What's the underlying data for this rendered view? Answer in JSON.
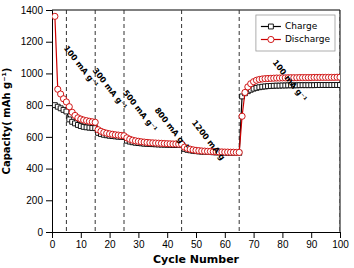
{
  "chart_data": {
    "type": "line",
    "xlabel": "Cycle Number",
    "ylabel": "Capacity( mAh g⁻¹)",
    "xlim": [
      0,
      100
    ],
    "ylim": [
      0,
      1400
    ],
    "xticks": [
      0,
      10,
      20,
      30,
      40,
      50,
      60,
      70,
      80,
      90,
      100
    ],
    "yticks": [
      0,
      200,
      400,
      600,
      800,
      1000,
      1200,
      1400
    ],
    "grid": false,
    "legend": "upper right",
    "x": [
      1,
      2,
      3,
      4,
      5,
      6,
      7,
      8,
      9,
      10,
      11,
      12,
      13,
      14,
      15,
      16,
      17,
      18,
      19,
      20,
      21,
      22,
      23,
      24,
      25,
      26,
      27,
      28,
      29,
      30,
      31,
      32,
      33,
      34,
      35,
      36,
      37,
      38,
      39,
      40,
      41,
      42,
      43,
      44,
      45,
      46,
      47,
      48,
      49,
      50,
      51,
      52,
      53,
      54,
      55,
      56,
      57,
      58,
      59,
      60,
      61,
      62,
      63,
      64,
      65,
      66,
      67,
      68,
      69,
      70,
      71,
      72,
      73,
      74,
      75,
      76,
      77,
      78,
      79,
      80,
      81,
      82,
      83,
      84,
      85,
      86,
      87,
      88,
      89,
      90,
      91,
      92,
      93,
      94,
      95,
      96,
      97,
      98,
      99,
      100
    ],
    "series": [
      {
        "name": "Charge",
        "color": "#000000",
        "marker": "square",
        "values": [
          800,
          790,
          780,
          770,
          760,
          710,
          695,
          685,
          675,
          668,
          663,
          660,
          658,
          656,
          655,
          625,
          618,
          613,
          610,
          607,
          605,
          603,
          601,
          600,
          599,
          576,
          570,
          566,
          563,
          561,
          559,
          557,
          556,
          555,
          554,
          553,
          552,
          551,
          551,
          550,
          550,
          549,
          549,
          549,
          548,
          524,
          518,
          515,
          512,
          510,
          508,
          507,
          506,
          505,
          504,
          503,
          502,
          502,
          501,
          501,
          500,
          500,
          500,
          499,
          499,
          855,
          875,
          888,
          897,
          904,
          909,
          913,
          916,
          918,
          920,
          921,
          922,
          923,
          923,
          924,
          924,
          925,
          925,
          925,
          925,
          926,
          926,
          926,
          926,
          926,
          926,
          927,
          927,
          927,
          927,
          927,
          927,
          927,
          927,
          927
        ]
      },
      {
        "name": "Discharge",
        "color": "#cc0000",
        "marker": "circle",
        "values": [
          1360,
          900,
          870,
          840,
          820,
          790,
          755,
          735,
          720,
          712,
          706,
          702,
          698,
          695,
          692,
          645,
          635,
          628,
          623,
          619,
          616,
          613,
          611,
          609,
          607,
          594,
          585,
          579,
          575,
          572,
          569,
          567,
          565,
          563,
          562,
          561,
          560,
          559,
          558,
          557,
          556,
          555,
          555,
          554,
          554,
          535,
          527,
          522,
          518,
          515,
          513,
          511,
          510,
          509,
          508,
          507,
          506,
          505,
          505,
          504,
          504,
          503,
          503,
          502,
          502,
          730,
          880,
          915,
          935,
          948,
          957,
          962,
          965,
          967,
          968,
          969,
          970,
          971,
          971,
          972,
          972,
          973,
          973,
          973,
          973,
          974,
          974,
          974,
          974,
          974,
          975,
          975,
          975,
          975,
          975,
          975,
          975,
          975,
          976,
          976
        ]
      }
    ],
    "vlines": [
      5,
      15,
      25,
      45,
      65,
      100
    ],
    "annotations": [
      {
        "text": "100 mA g⁻¹",
        "x": 5.5,
        "y": 1180
      },
      {
        "text": "300 mA g⁻¹",
        "x": 15.5,
        "y": 1040
      },
      {
        "text": "500 mA g⁻¹",
        "x": 26,
        "y": 900
      },
      {
        "text": "800 mA g⁻¹",
        "x": 37,
        "y": 790
      },
      {
        "text": "1200 mA g",
        "x": 50,
        "y": 710
      },
      {
        "text": "100 mA g⁻¹",
        "x": 78,
        "y": 1090
      }
    ]
  }
}
